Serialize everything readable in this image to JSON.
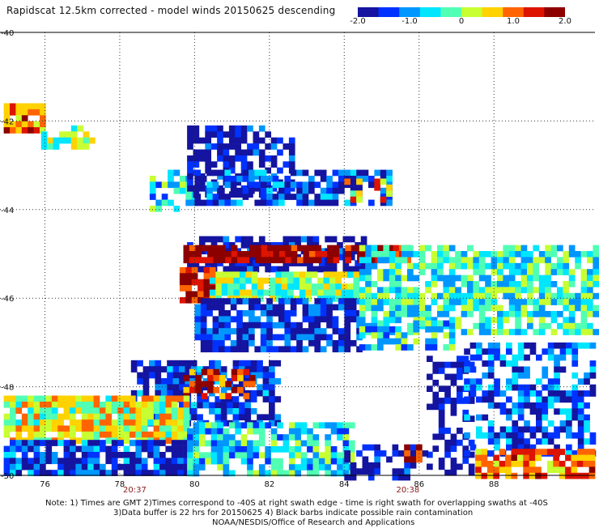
{
  "title": "Rapidscat 12.5km corrected - model winds 20150625 descending",
  "colorbar": {
    "ticks": [
      "-2.0",
      "-1.0",
      "0",
      "1.0",
      "2.0"
    ],
    "tick_values": [
      -2.0,
      -1.0,
      0,
      1.0,
      2.0
    ],
    "colors": [
      "#1414a0",
      "#0032ff",
      "#0096ff",
      "#00e6ff",
      "#50ffb4",
      "#c8ff32",
      "#ffd200",
      "#ff6400",
      "#dc1400",
      "#8c0000"
    ]
  },
  "chart_data": {
    "type": "heatmap",
    "title": "Rapidscat 12.5km corrected - model winds 20150625 descending",
    "xlabel": "",
    "ylabel": "",
    "xlim": [
      74.8,
      90.7
    ],
    "ylim": [
      -50.0,
      -40.0
    ],
    "x_ticks": [
      "76",
      "78",
      "80",
      "82",
      "84",
      "86",
      "88"
    ],
    "x_tick_values": [
      76,
      78,
      80,
      82,
      84,
      86,
      88
    ],
    "y_ticks": [
      "-40",
      "-42",
      "-44",
      "-46",
      "-48",
      "-50"
    ],
    "y_tick_values": [
      -40,
      -42,
      -44,
      -46,
      -48,
      -50
    ],
    "grid": true,
    "value_range": [
      -2.0,
      2.0
    ],
    "time_labels": [
      {
        "text": "20:37",
        "x": 78.4
      },
      {
        "text": "20:38",
        "x": 85.7
      }
    ],
    "regions": [
      {
        "x": [
          74.9,
          75.9
        ],
        "y": [
          -42.2,
          -41.6
        ],
        "value": 1.0,
        "density": 0.8
      },
      {
        "x": [
          75.9,
          77.3
        ],
        "y": [
          -42.6,
          -42.1
        ],
        "value": -0.1,
        "density": 0.5
      },
      {
        "x": [
          78.8,
          80.1
        ],
        "y": [
          -44.0,
          -43.1
        ],
        "value": -0.6,
        "density": 0.6
      },
      {
        "x": [
          79.8,
          82.6
        ],
        "y": [
          -43.7,
          -42.1
        ],
        "value": -1.8,
        "density": 0.65
      },
      {
        "x": [
          80.0,
          85.2
        ],
        "y": [
          -43.9,
          -43.1
        ],
        "value": -1.5,
        "density": 0.7
      },
      {
        "x": [
          84.0,
          85.2
        ],
        "y": [
          -43.8,
          -43.3
        ],
        "value": 0.7,
        "density": 0.4
      },
      {
        "x": [
          79.8,
          84.5
        ],
        "y": [
          -45.3,
          -44.6
        ],
        "value": -1.9,
        "density": 0.7
      },
      {
        "x": [
          79.7,
          85.8
        ],
        "y": [
          -45.1,
          -44.8
        ],
        "value": 1.9,
        "density": 0.9
      },
      {
        "x": [
          79.6,
          80.5
        ],
        "y": [
          -46.0,
          -45.3
        ],
        "value": 1.6,
        "density": 0.9
      },
      {
        "x": [
          80.4,
          84.4
        ],
        "y": [
          -46.0,
          -45.4
        ],
        "value": 0.0,
        "density": 0.85
      },
      {
        "x": [
          80.0,
          84.5
        ],
        "y": [
          -47.2,
          -46.0
        ],
        "value": -1.6,
        "density": 0.8
      },
      {
        "x": [
          84.4,
          90.7
        ],
        "y": [
          -46.8,
          -44.8
        ],
        "value": -0.4,
        "density": 0.75
      },
      {
        "x": [
          84.4,
          87.0
        ],
        "y": [
          -47.1,
          -46.5
        ],
        "value": -0.5,
        "density": 0.6
      },
      {
        "x": [
          86.2,
          87.5
        ],
        "y": [
          -49.9,
          -47.3
        ],
        "value": -2.0,
        "density": 0.5
      },
      {
        "x": [
          87.2,
          90.7
        ],
        "y": [
          -49.5,
          -47.0
        ],
        "value": -1.2,
        "density": 0.55
      },
      {
        "x": [
          87.5,
          90.7
        ],
        "y": [
          -50.0,
          -49.4
        ],
        "value": 0.9,
        "density": 0.8
      },
      {
        "x": [
          78.3,
          82.2
        ],
        "y": [
          -48.8,
          -47.4
        ],
        "value": -1.5,
        "density": 0.75
      },
      {
        "x": [
          79.7,
          81.5
        ],
        "y": [
          -48.2,
          -47.6
        ],
        "value": 1.2,
        "density": 0.6
      },
      {
        "x": [
          74.9,
          79.8
        ],
        "y": [
          -49.2,
          -48.2
        ],
        "value": 0.3,
        "density": 0.9
      },
      {
        "x": [
          74.9,
          79.8
        ],
        "y": [
          -50.0,
          -49.2
        ],
        "value": -1.5,
        "density": 0.85
      },
      {
        "x": [
          79.8,
          84.2
        ],
        "y": [
          -50.0,
          -48.8
        ],
        "value": -0.6,
        "density": 0.75
      },
      {
        "x": [
          84.0,
          86.2
        ],
        "y": [
          -50.0,
          -49.3
        ],
        "value": -1.8,
        "density": 0.55
      },
      {
        "x": [
          85.6,
          86.0
        ],
        "y": [
          -49.7,
          -49.3
        ],
        "value": 1.6,
        "density": 0.7
      }
    ]
  },
  "notes": {
    "line1": "Note: 1) Times are GMT 2)Times correspond to -40S at right swath edge - time is right swath for overlapping swaths at -40S",
    "line2": "3)Data buffer is 22 hrs for 20150625 4) Black barbs indicate possible rain contamination",
    "line3": "NOAA/NESDIS/Office of Research and Applications"
  }
}
